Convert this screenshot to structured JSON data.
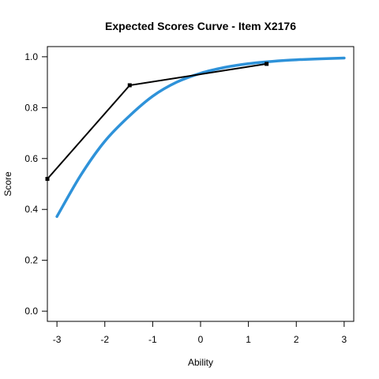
{
  "chart_data": {
    "type": "line",
    "title": "Expected Scores Curve - Item  X2176",
    "xlabel": "Ability",
    "ylabel": "Score",
    "xlim": [
      -3.2,
      3.2
    ],
    "ylim": [
      -0.04,
      1.04
    ],
    "x_ticks": [
      "-3",
      "-2",
      "-1",
      "0",
      "1",
      "2",
      "3"
    ],
    "y_ticks": [
      "0.0",
      "0.2",
      "0.4",
      "0.6",
      "0.8",
      "1.0"
    ],
    "grid": false,
    "series": [
      {
        "style": "curve",
        "color": "#2E92D9",
        "x": [
          -3.0,
          -2.5,
          -2.0,
          -1.5,
          -1.0,
          -0.5,
          0.0,
          0.5,
          1.0,
          1.5,
          2.0,
          2.5,
          3.0
        ],
        "y": [
          0.372,
          0.535,
          0.668,
          0.765,
          0.845,
          0.9,
          0.935,
          0.958,
          0.973,
          0.982,
          0.988,
          0.992,
          0.995
        ]
      },
      {
        "style": "observed",
        "color": "#000000",
        "x": [
          -3.2,
          -1.48,
          1.38
        ],
        "y": [
          0.52,
          0.888,
          0.972
        ]
      }
    ]
  }
}
